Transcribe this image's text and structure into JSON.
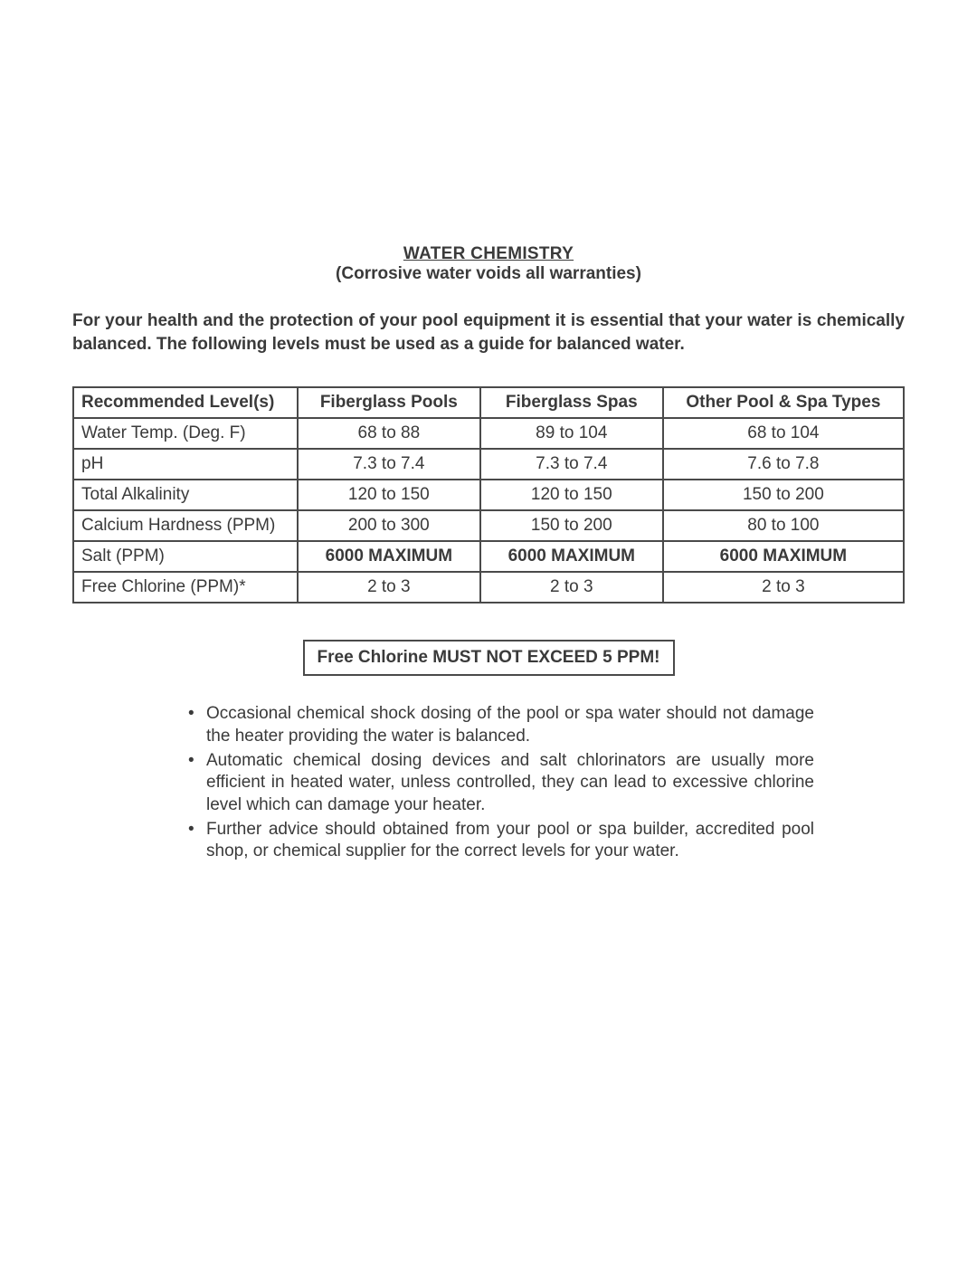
{
  "header": {
    "title": "WATER CHEMISTRY",
    "subtitle": "(Corrosive water voids all warranties)"
  },
  "intro": "For your health and the protection of your pool equipment it is essential that your water is chemically balanced. The following levels must be used as a guide for balanced water.",
  "table": {
    "columns": [
      "Recommended Level(s)",
      "Fiberglass Pools",
      "Fiberglass Spas",
      "Other Pool & Spa Types"
    ],
    "rows": [
      {
        "label": "Water Temp. (Deg. F)",
        "c1": "68 to 88",
        "c2": "89 to 104",
        "c3": "68 to 104",
        "bold": false
      },
      {
        "label": "pH",
        "c1": "7.3 to 7.4",
        "c2": "7.3 to 7.4",
        "c3": "7.6 to 7.8",
        "bold": false
      },
      {
        "label": "Total Alkalinity",
        "c1": "120 to 150",
        "c2": "120 to 150",
        "c3": "150 to 200",
        "bold": false
      },
      {
        "label": "Calcium Hardness (PPM)",
        "c1": "200 to 300",
        "c2": "150 to 200",
        "c3": "80 to 100",
        "bold": false
      },
      {
        "label": "Salt (PPM)",
        "c1": "6000 MAXIMUM",
        "c2": "6000 MAXIMUM",
        "c3": "6000 MAXIMUM",
        "bold": true
      },
      {
        "label": "Free Chlorine (PPM)*",
        "c1": "2 to 3",
        "c2": "2 to 3",
        "c3": "2 to 3",
        "bold": false
      }
    ]
  },
  "warning": "Free Chlorine MUST NOT EXCEED 5 PPM!",
  "notes": [
    "Occasional chemical shock dosing of the pool or spa water should not damage the heater providing the water is balanced.",
    "Automatic chemical dosing devices and salt chlorinators are usually more efficient in heated water, unless controlled, they can lead to excessive chlorine level which can damage your heater.",
    "Further advice should obtained from your pool or spa builder, accredited pool shop, or chemical supplier for the correct levels for your water."
  ]
}
